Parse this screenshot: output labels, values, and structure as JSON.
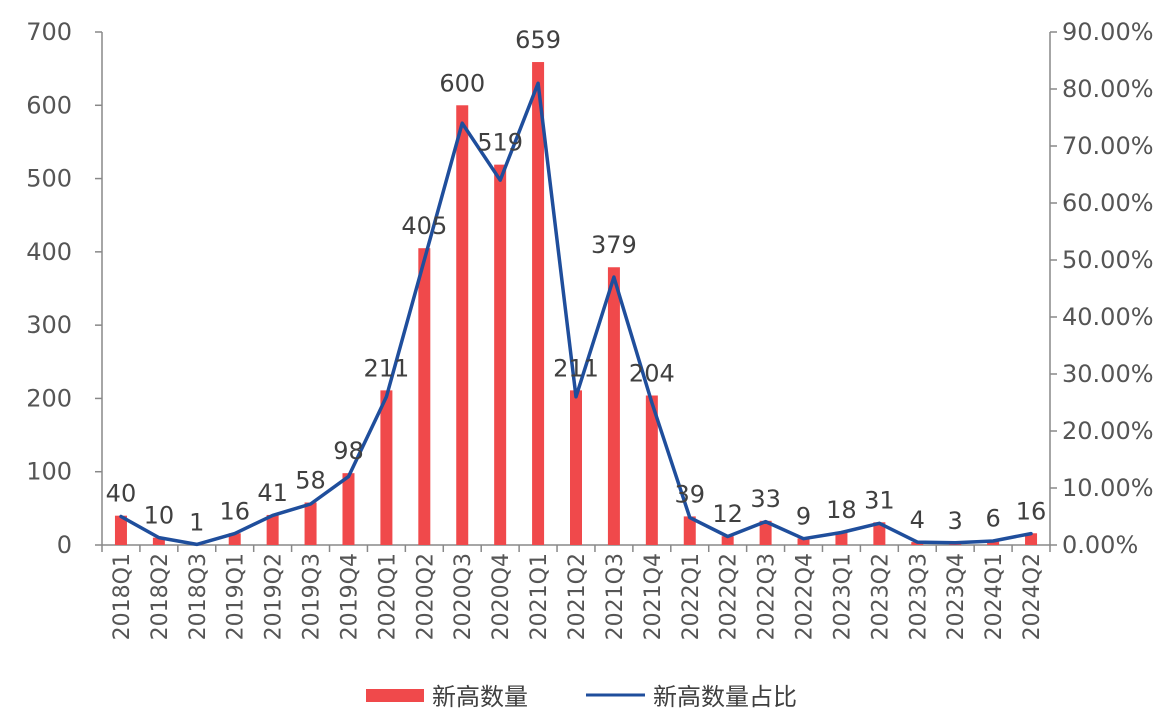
{
  "chart_data": {
    "type": "bar",
    "categories": [
      "2018Q1",
      "2018Q2",
      "2018Q3",
      "2019Q1",
      "2019Q2",
      "2019Q3",
      "2019Q4",
      "2020Q1",
      "2020Q2",
      "2020Q3",
      "2020Q4",
      "2021Q1",
      "2021Q2",
      "2021Q3",
      "2021Q4",
      "2022Q1",
      "2022Q2",
      "2022Q3",
      "2022Q4",
      "2023Q1",
      "2023Q2",
      "2023Q3",
      "2023Q4",
      "2024Q1",
      "2024Q2"
    ],
    "series": [
      {
        "name": "新高数量",
        "type": "bar",
        "axis": "left",
        "color": "#F0494B",
        "values": [
          40,
          10,
          1,
          16,
          41,
          58,
          98,
          211,
          405,
          600,
          519,
          659,
          211,
          379,
          204,
          39,
          12,
          33,
          9,
          18,
          31,
          4,
          3,
          6,
          16
        ],
        "labels": [
          "40",
          "10",
          "1",
          "16",
          "41",
          "58",
          "98",
          "211",
          "405",
          "600",
          "519",
          "659",
          "211",
          "379",
          "204",
          "39",
          "12",
          "33",
          "9",
          "18",
          "31",
          "4",
          "3",
          "6",
          "16"
        ]
      },
      {
        "name": "新高数量占比",
        "type": "line",
        "axis": "right",
        "color": "#1F4E9C",
        "values": [
          0.05,
          0.013,
          0.001,
          0.02,
          0.052,
          0.072,
          0.12,
          0.26,
          0.5,
          0.74,
          0.64,
          0.81,
          0.26,
          0.47,
          0.25,
          0.048,
          0.015,
          0.041,
          0.011,
          0.022,
          0.038,
          0.005,
          0.004,
          0.007,
          0.02
        ]
      }
    ],
    "y_left": {
      "range": [
        0,
        700
      ],
      "ticks": [
        0,
        100,
        200,
        300,
        400,
        500,
        600,
        700
      ],
      "tick_labels": [
        "0",
        "100",
        "200",
        "300",
        "400",
        "500",
        "600",
        "700"
      ]
    },
    "y_right": {
      "range": [
        0,
        0.9
      ],
      "ticks": [
        0,
        0.1,
        0.2,
        0.3,
        0.4,
        0.5,
        0.6,
        0.7,
        0.8,
        0.9
      ],
      "tick_labels": [
        "0.00%",
        "10.00%",
        "20.00%",
        "30.00%",
        "40.00%",
        "50.00%",
        "60.00%",
        "70.00%",
        "80.00%",
        "90.00%"
      ]
    },
    "grid": false,
    "legend_position": "bottom-center",
    "axis_color": "#888888"
  },
  "legend": {
    "bar_label": "新高数量",
    "line_label": "新高数量占比"
  }
}
